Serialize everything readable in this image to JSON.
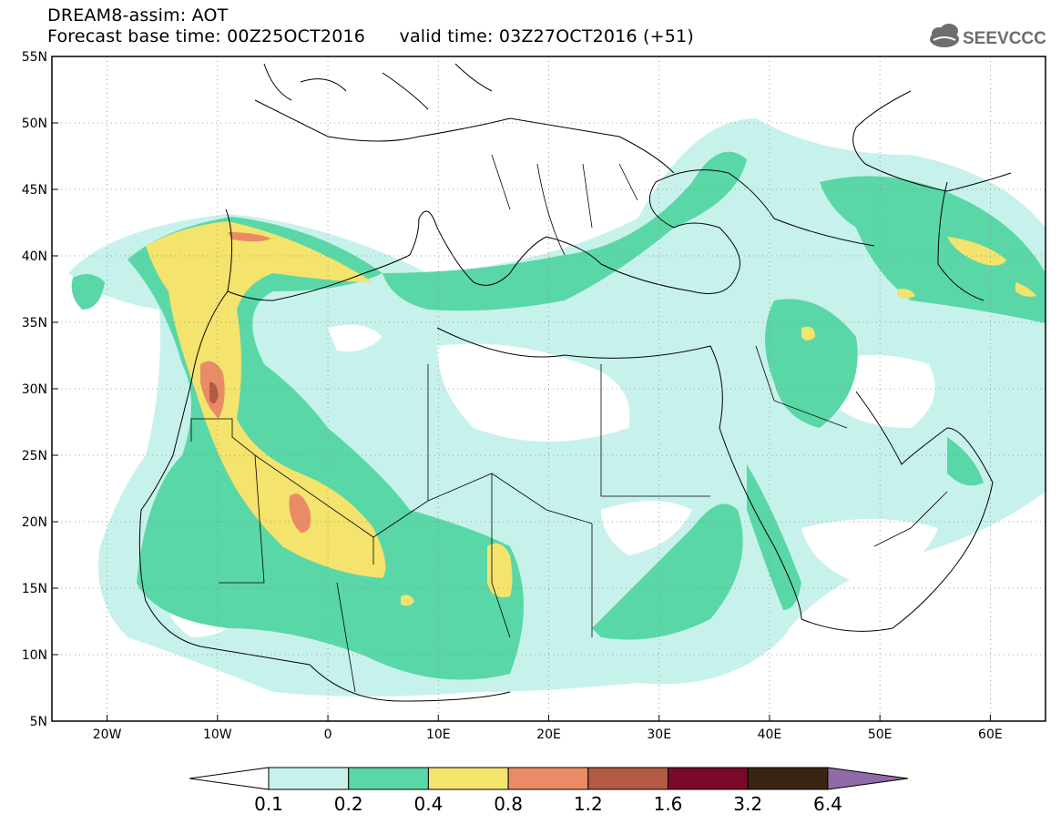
{
  "header": {
    "title": "DREAM8-assim: AOT",
    "subtitle": "Forecast base time: 00Z25OCT2016      valid time: 03Z27OCT2016 (+51)",
    "logo_text": "SEEVCCC"
  },
  "map": {
    "lat_labels": [
      "55N",
      "50N",
      "45N",
      "40N",
      "35N",
      "30N",
      "25N",
      "20N",
      "15N",
      "10N",
      "5N"
    ],
    "lat_values": [
      55,
      50,
      45,
      40,
      35,
      30,
      25,
      20,
      15,
      10,
      5
    ],
    "lon_labels": [
      "20W",
      "10W",
      "0",
      "10E",
      "20E",
      "30E",
      "40E",
      "50E",
      "60E"
    ],
    "lon_values": [
      -20,
      -10,
      0,
      10,
      20,
      30,
      40,
      50,
      60
    ],
    "lon_range": [
      -25,
      65
    ],
    "lat_range": [
      5,
      55
    ],
    "grid": "dotted"
  },
  "colorbar": {
    "labels": [
      "0.1",
      "0.2",
      "0.4",
      "0.8",
      "1.2",
      "1.6",
      "3.2",
      "6.4"
    ],
    "colors": [
      "#ffffff",
      "#c7f2ec",
      "#5ad7a6",
      "#f4e36d",
      "#e98c66",
      "#b35a44",
      "#7b0a2a",
      "#3a2412",
      "#8e6aa8"
    ]
  }
}
